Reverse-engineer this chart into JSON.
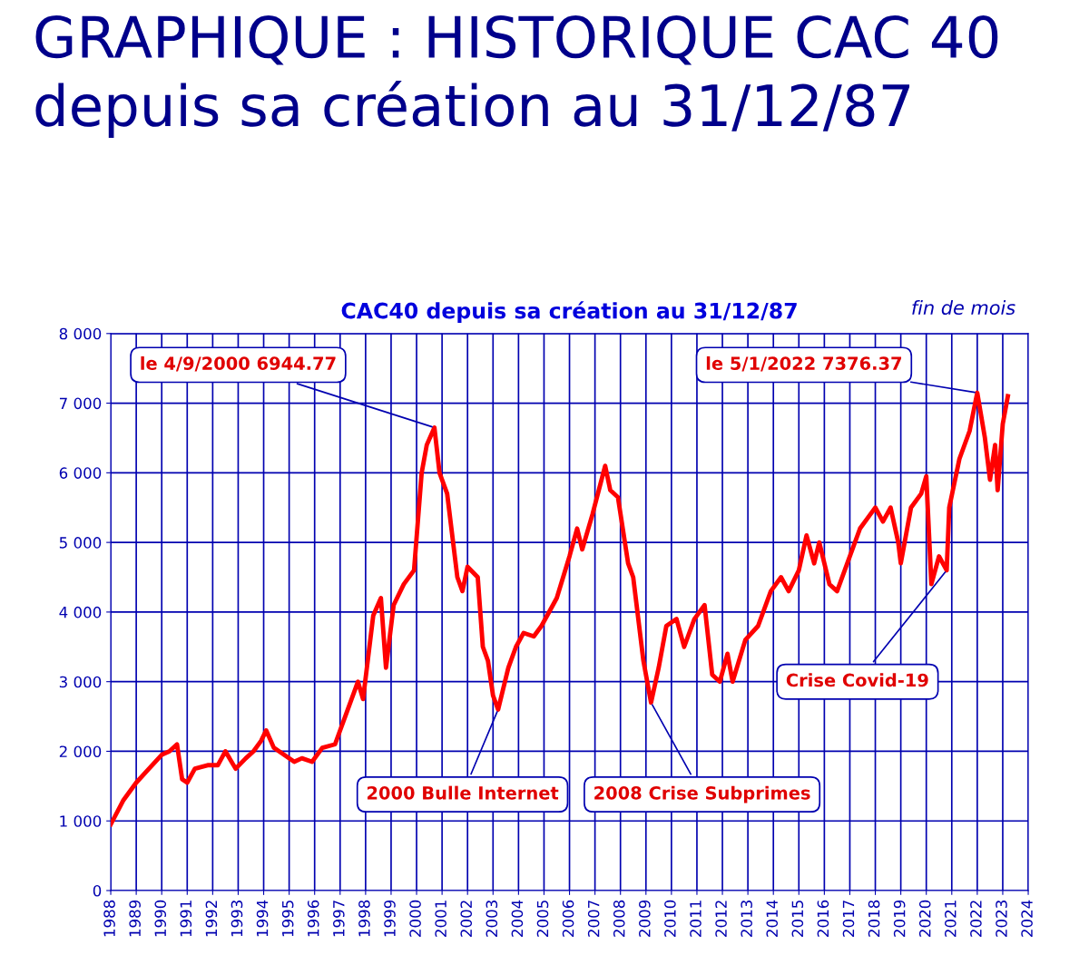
{
  "chart_data": {
    "type": "line",
    "title": "GRAPHIQUE : HISTORIQUE CAC 40 depuis sa création au 31/12/87",
    "subtitle": "CAC40 depuis sa création au 31/12/87",
    "x": [
      1988.0,
      1988.5,
      1989.0,
      1989.5,
      1990.0,
      1990.3,
      1990.6,
      1990.8,
      1991.0,
      1991.3,
      1991.8,
      1992.2,
      1992.5,
      1992.9,
      1993.3,
      1993.6,
      1993.9,
      1994.1,
      1994.4,
      1994.8,
      1995.2,
      1995.5,
      1995.9,
      1996.3,
      1996.8,
      1997.3,
      1997.7,
      1997.9,
      1998.3,
      1998.6,
      1998.8,
      1999.1,
      1999.5,
      1999.9,
      2000.2,
      2000.4,
      2000.7,
      2000.9,
      2001.2,
      2001.6,
      2001.8,
      2002.0,
      2002.4,
      2002.6,
      2002.8,
      2003.0,
      2003.2,
      2003.6,
      2003.9,
      2004.2,
      2004.6,
      2004.9,
      2005.5,
      2006.0,
      2006.3,
      2006.5,
      2006.9,
      2007.4,
      2007.6,
      2007.9,
      2008.3,
      2008.5,
      2008.9,
      2009.2,
      2009.5,
      2009.8,
      2010.2,
      2010.5,
      2010.9,
      2011.3,
      2011.6,
      2011.9,
      2012.2,
      2012.4,
      2012.9,
      2013.4,
      2013.9,
      2014.3,
      2014.6,
      2015.0,
      2015.3,
      2015.6,
      2015.8,
      2016.2,
      2016.5,
      2016.9,
      2017.4,
      2017.8,
      2018.0,
      2018.3,
      2018.6,
      2018.9,
      2019.0,
      2019.4,
      2019.8,
      2020.0,
      2020.2,
      2020.5,
      2020.8,
      2020.9,
      2021.3,
      2021.7,
      2022.0,
      2022.3,
      2022.5,
      2022.7,
      2022.8,
      2023.0,
      2023.2
    ],
    "series": [
      {
        "color": "#ff0000",
        "values": [
          950,
          1300,
          1550,
          1750,
          1950,
          2000,
          2100,
          1600,
          1550,
          1750,
          1800,
          1800,
          2000,
          1750,
          1900,
          2000,
          2150,
          2300,
          2050,
          1950,
          1850,
          1900,
          1850,
          2050,
          2100,
          2600,
          3000,
          2750,
          3950,
          4200,
          3200,
          4100,
          4400,
          4600,
          6000,
          6400,
          6650,
          6000,
          5700,
          4500,
          4300,
          4650,
          4500,
          3500,
          3300,
          2800,
          2600,
          3200,
          3500,
          3700,
          3650,
          3800,
          4200,
          4800,
          5200,
          4900,
          5400,
          6100,
          5750,
          5650,
          4700,
          4500,
          3300,
          2700,
          3200,
          3800,
          3900,
          3500,
          3900,
          4100,
          3100,
          3000,
          3400,
          3000,
          3600,
          3800,
          4300,
          4500,
          4300,
          4600,
          5100,
          4700,
          5000,
          4400,
          4300,
          4700,
          5200,
          5400,
          5500,
          5300,
          5500,
          5000,
          4700,
          5500,
          5700,
          5950,
          4400,
          4800,
          4600,
          5500,
          6200,
          6600,
          7150,
          6500,
          5900,
          6400,
          5750,
          6700,
          7100
        ]
      }
    ],
    "xlim": [
      1988,
      2024
    ],
    "xticks": [
      1988,
      1989,
      1990,
      1991,
      1992,
      1993,
      1994,
      1995,
      1996,
      1997,
      1998,
      1999,
      2000,
      2001,
      2002,
      2003,
      2004,
      2005,
      2006,
      2007,
      2008,
      2009,
      2010,
      2011,
      2012,
      2013,
      2014,
      2015,
      2016,
      2017,
      2018,
      2019,
      2020,
      2021,
      2022,
      2023,
      2024
    ],
    "ylim": [
      0,
      8000
    ],
    "yticks": [
      0,
      {
        "value": 1000,
        "label": "1 000"
      },
      {
        "value": 2000,
        "label": "2 000"
      },
      {
        "value": 3000,
        "label": "3 000"
      },
      {
        "value": 4000,
        "label": "4 000"
      },
      {
        "value": 5000,
        "label": "5 000"
      },
      {
        "value": 6000,
        "label": "6 000"
      },
      {
        "value": 7000,
        "label": "7 000"
      },
      {
        "value": 8000,
        "label": "8 000"
      }
    ],
    "grid": true,
    "line_style": "solid",
    "marker": "none",
    "annotations": [
      "fin de mois",
      {
        "text": "le 4/9/2000 6944.77",
        "x": 2000.7,
        "y": 6650
      },
      {
        "text": "le 5/1/2022 7376.37",
        "x": 2022.0,
        "y": 7150
      },
      {
        "text": "2000 Bulle Internet",
        "x": 2003.2,
        "y": 2600
      },
      {
        "text": "2008 Crise Subprimes",
        "x": 2009.2,
        "y": 2700
      },
      {
        "text": "Crise Covid-19",
        "x": 2020.8,
        "y": 4600
      }
    ]
  }
}
